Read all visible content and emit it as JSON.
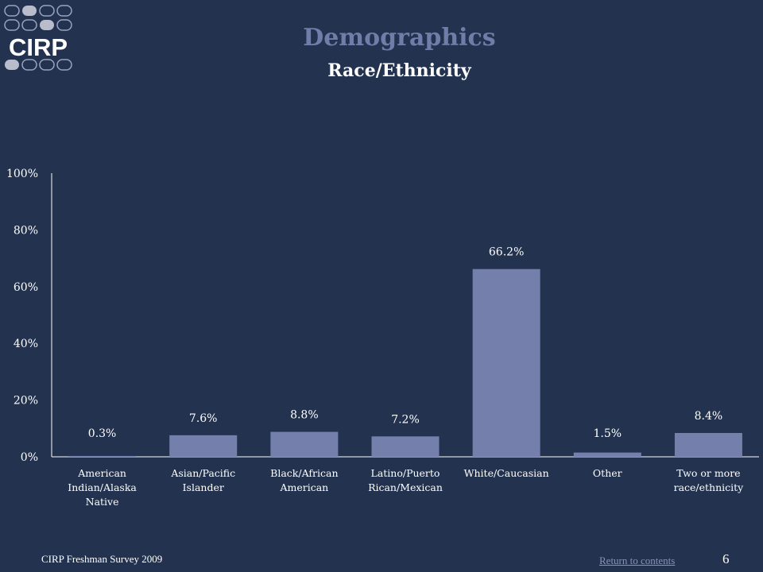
{
  "header": {
    "logo_text": "CIRP",
    "title": "Demographics",
    "subtitle": "Race/Ethnicity"
  },
  "footer": {
    "survey": "CIRP Freshman Survey 2009",
    "link": "Return to contents",
    "page": "6"
  },
  "colors": {
    "background": "#22324f",
    "bar": "#7480ab",
    "title": "#6f7ea8",
    "text": "#ffffff"
  },
  "chart_data": {
    "type": "bar",
    "categories": [
      [
        "American",
        "Indian/Alaska",
        "Native"
      ],
      [
        "Asian/Pacific",
        "Islander"
      ],
      [
        "Black/African",
        "American"
      ],
      [
        "Latino/Puerto",
        "Rican/Mexican"
      ],
      [
        "White/Caucasian"
      ],
      [
        "Other"
      ],
      [
        "Two or more",
        "race/ethnicity"
      ]
    ],
    "values": [
      0.3,
      7.6,
      8.8,
      7.2,
      66.2,
      1.5,
      8.4
    ],
    "data_labels": [
      "0.3%",
      "7.6%",
      "8.8%",
      "7.2%",
      "66.2%",
      "1.5%",
      "8.4%"
    ],
    "y_ticks": [
      "0%",
      "20%",
      "40%",
      "60%",
      "80%",
      "100%"
    ],
    "ylim": [
      0,
      100
    ],
    "grid": false,
    "legend": "none"
  }
}
